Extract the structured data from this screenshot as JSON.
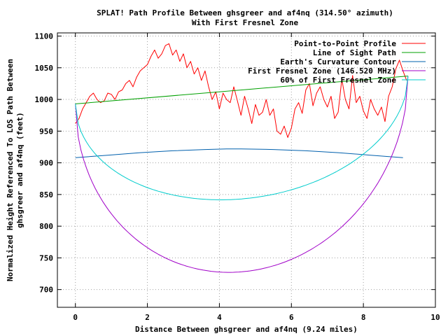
{
  "chart_data": {
    "type": "line",
    "title": "SPLAT! Path Profile Between ghsgreer and af4nq (314.50° azimuth)",
    "subtitle": "With First Fresnel Zone",
    "xlabel": "Distance Between ghsgreer and af4nq (9.24 miles)",
    "ylabel_line1": "Normalized Height Referenced To LOS Path Between",
    "ylabel_line2": "ghsgreer and af4nq (feet)",
    "xlim": [
      -0.5,
      10
    ],
    "ylim": [
      672,
      1105
    ],
    "x_ticks": [
      0,
      2,
      4,
      6,
      8,
      10
    ],
    "y_ticks": [
      700,
      750,
      800,
      850,
      900,
      950,
      1000,
      1050,
      1100
    ],
    "grid": true,
    "legend_position": "top-right",
    "path_length": 9.24,
    "series": [
      {
        "name": "Point-to-Point Profile",
        "color": "#ff0000",
        "x": [
          0,
          0.1,
          0.2,
          0.3,
          0.4,
          0.5,
          0.6,
          0.7,
          0.8,
          0.9,
          1.0,
          1.1,
          1.2,
          1.3,
          1.4,
          1.5,
          1.6,
          1.7,
          1.8,
          1.9,
          2.0,
          2.1,
          2.2,
          2.3,
          2.4,
          2.5,
          2.6,
          2.7,
          2.8,
          2.9,
          3.0,
          3.1,
          3.2,
          3.3,
          3.4,
          3.5,
          3.6,
          3.7,
          3.8,
          3.9,
          4.0,
          4.1,
          4.2,
          4.3,
          4.4,
          4.5,
          4.6,
          4.7,
          4.8,
          4.9,
          5.0,
          5.1,
          5.2,
          5.3,
          5.4,
          5.5,
          5.6,
          5.7,
          5.8,
          5.9,
          6.0,
          6.1,
          6.2,
          6.3,
          6.4,
          6.5,
          6.6,
          6.7,
          6.8,
          6.9,
          7.0,
          7.1,
          7.2,
          7.3,
          7.4,
          7.5,
          7.6,
          7.7,
          7.8,
          7.9,
          8.0,
          8.1,
          8.2,
          8.3,
          8.4,
          8.5,
          8.6,
          8.7,
          8.8,
          8.9,
          9.0,
          9.1,
          9.2
        ],
        "y": [
          962,
          970,
          985,
          995,
          1005,
          1010,
          1000,
          995,
          998,
          1010,
          1008,
          1000,
          1012,
          1015,
          1025,
          1030,
          1020,
          1035,
          1045,
          1050,
          1055,
          1068,
          1078,
          1065,
          1072,
          1085,
          1088,
          1070,
          1078,
          1060,
          1072,
          1050,
          1060,
          1040,
          1050,
          1030,
          1045,
          1020,
          1000,
          1012,
          985,
          1010,
          1000,
          995,
          1020,
          998,
          975,
          1005,
          985,
          962,
          992,
          975,
          980,
          1000,
          975,
          985,
          950,
          945,
          958,
          940,
          955,
          985,
          995,
          978,
          1015,
          1025,
          990,
          1010,
          1020,
          1000,
          988,
          1005,
          970,
          980,
          1032,
          1000,
          985,
          1038,
          995,
          1005,
          982,
          970,
          1000,
          985,
          975,
          988,
          965,
          1005,
          1020,
          1048,
          1062,
          1045,
          1030
        ]
      },
      {
        "name": "Line of Sight Path",
        "color": "#00a000",
        "x": [
          0,
          9.24
        ],
        "y": [
          993,
          1037
        ]
      },
      {
        "name": "Earth's Curvature Contour",
        "color": "#0060ad",
        "x": [
          0,
          0.9,
          1.8,
          2.7,
          3.6,
          4.2,
          4.6,
          5.5,
          6.4,
          7.3,
          8.2,
          9.1
        ],
        "y": [
          908,
          912,
          916,
          919,
          921,
          922,
          922,
          921,
          919,
          916,
          912,
          908
        ]
      },
      {
        "name": "First Fresnel Zone (146.520 MHz)",
        "color": "#a000c8",
        "fresnel_radius_mid": 287,
        "fresnel_zone_fraction": 1.0
      },
      {
        "name": "60% of First Fresnel Zone",
        "color": "#00cccc",
        "fresnel_radius_mid": 172,
        "fresnel_zone_fraction": 0.6
      }
    ]
  }
}
